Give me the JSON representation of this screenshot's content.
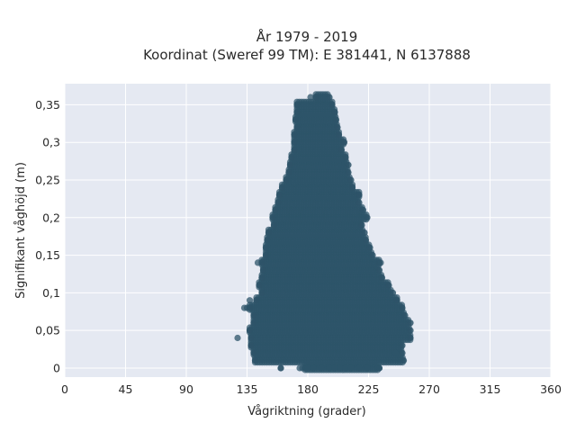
{
  "chart_data": {
    "type": "scatter",
    "title": "År 1979 - 2019",
    "subtitle": "Koordinat (Sweref 99 TM): E 381441, N 6137888",
    "xlabel": "Vågriktning (grader)",
    "ylabel": "Signifikant våghöjd (m)",
    "xlim": [
      0,
      360
    ],
    "ylim": [
      -0.012,
      0.378
    ],
    "grid": true,
    "x_ticks": [
      0,
      45,
      90,
      135,
      180,
      225,
      270,
      315,
      360
    ],
    "x_tick_labels": [
      "0",
      "45",
      "90",
      "135",
      "180",
      "225",
      "270",
      "315",
      "360"
    ],
    "y_ticks": [
      0,
      0.05,
      0.1,
      0.15,
      0.2,
      0.25,
      0.3,
      0.35
    ],
    "y_tick_labels": [
      "0",
      "0,05",
      "0,1",
      "0,15",
      "0,2",
      "0,25",
      "0,3",
      "0,35"
    ],
    "colors": {
      "plot_bg": "#e5e9f2",
      "grid": "#ffffff",
      "marker": "#2e5469"
    },
    "band_step": 0.01,
    "bands": [
      {
        "y": 0.0,
        "x_min": 178,
        "x_max": 233
      },
      {
        "y": 0.01,
        "x_min": 141,
        "x_max": 251
      },
      {
        "y": 0.02,
        "x_min": 140,
        "x_max": 250
      },
      {
        "y": 0.03,
        "x_min": 138,
        "x_max": 250
      },
      {
        "y": 0.04,
        "x_min": 138,
        "x_max": 256
      },
      {
        "y": 0.05,
        "x_min": 137,
        "x_max": 256
      },
      {
        "y": 0.06,
        "x_min": 140,
        "x_max": 256
      },
      {
        "y": 0.07,
        "x_min": 140,
        "x_max": 252
      },
      {
        "y": 0.08,
        "x_min": 137,
        "x_max": 250
      },
      {
        "y": 0.09,
        "x_min": 142,
        "x_max": 246
      },
      {
        "y": 0.1,
        "x_min": 146,
        "x_max": 243
      },
      {
        "y": 0.11,
        "x_min": 144,
        "x_max": 240
      },
      {
        "y": 0.12,
        "x_min": 146,
        "x_max": 235
      },
      {
        "y": 0.13,
        "x_min": 147,
        "x_max": 233
      },
      {
        "y": 0.14,
        "x_min": 146,
        "x_max": 233
      },
      {
        "y": 0.15,
        "x_min": 149,
        "x_max": 228
      },
      {
        "y": 0.16,
        "x_min": 149,
        "x_max": 226
      },
      {
        "y": 0.17,
        "x_min": 150,
        "x_max": 223
      },
      {
        "y": 0.18,
        "x_min": 151,
        "x_max": 222
      },
      {
        "y": 0.19,
        "x_min": 155,
        "x_max": 220
      },
      {
        "y": 0.2,
        "x_min": 154,
        "x_max": 224
      },
      {
        "y": 0.21,
        "x_min": 156,
        "x_max": 221
      },
      {
        "y": 0.22,
        "x_min": 158,
        "x_max": 218
      },
      {
        "y": 0.23,
        "x_min": 159,
        "x_max": 218
      },
      {
        "y": 0.24,
        "x_min": 161,
        "x_max": 213
      },
      {
        "y": 0.25,
        "x_min": 164,
        "x_max": 212
      },
      {
        "y": 0.26,
        "x_min": 166,
        "x_max": 210
      },
      {
        "y": 0.27,
        "x_min": 167,
        "x_max": 210
      },
      {
        "y": 0.28,
        "x_min": 168,
        "x_max": 208
      },
      {
        "y": 0.29,
        "x_min": 170,
        "x_max": 205
      },
      {
        "y": 0.3,
        "x_min": 170,
        "x_max": 207
      },
      {
        "y": 0.31,
        "x_min": 170,
        "x_max": 203
      },
      {
        "y": 0.32,
        "x_min": 172,
        "x_max": 202
      },
      {
        "y": 0.33,
        "x_min": 171,
        "x_max": 201
      },
      {
        "y": 0.34,
        "x_min": 172,
        "x_max": 200
      },
      {
        "y": 0.35,
        "x_min": 172,
        "x_max": 198
      },
      {
        "y": 0.36,
        "x_min": 186,
        "x_max": 196
      }
    ],
    "outliers": [
      {
        "x": 128,
        "y": 0.04
      },
      {
        "x": 133,
        "y": 0.08
      },
      {
        "x": 135,
        "y": 0.08
      },
      {
        "x": 137,
        "y": 0.09
      },
      {
        "x": 143,
        "y": 0.14
      },
      {
        "x": 234,
        "y": 0.14
      },
      {
        "x": 160,
        "y": 0.0
      },
      {
        "x": 245,
        "y": 0.02
      },
      {
        "x": 182,
        "y": 0.36
      }
    ]
  }
}
